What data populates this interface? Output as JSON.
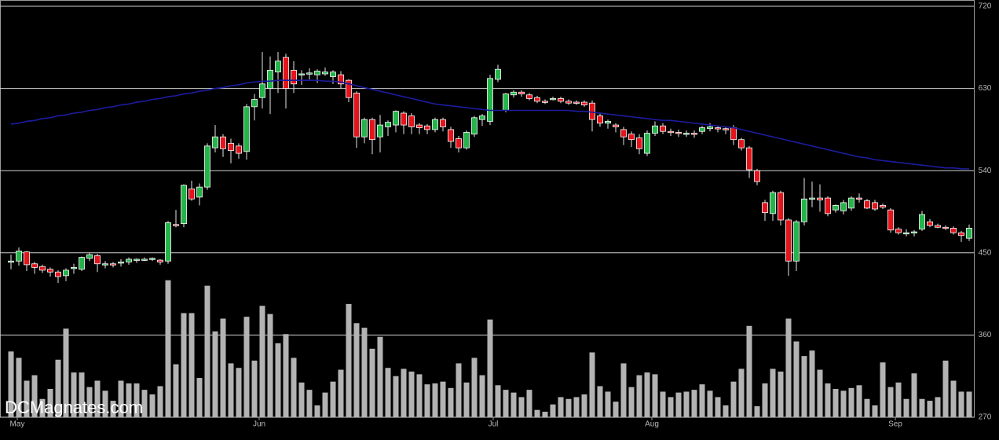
{
  "chart_data": {
    "type": "candlestick",
    "watermark": "DCMagnates.com",
    "ylim": [
      270,
      720
    ],
    "yticks": [
      270,
      360,
      450,
      540,
      630,
      720
    ],
    "grid": true,
    "xticks": [
      {
        "value": 0.8,
        "label": "May"
      },
      {
        "value": 31.6,
        "label": "Jun"
      },
      {
        "value": 61.4,
        "label": "Jul"
      },
      {
        "value": 81.6,
        "label": "Aug"
      },
      {
        "value": 112.6,
        "label": "Sep"
      }
    ],
    "candles": {
      "up_color": "#25b44a",
      "down_color": "#e3141b",
      "open": [
        440,
        441,
        451,
        438,
        435,
        432,
        429,
        425,
        433,
        432,
        444,
        447,
        438,
        438,
        439,
        440,
        442,
        443,
        443,
        442,
        441,
        481,
        482,
        520,
        511,
        522,
        565,
        577,
        570,
        567,
        561,
        610,
        620,
        630,
        648,
        664,
        650,
        645,
        646,
        645,
        646,
        643,
        645,
        639,
        625,
        577,
        596,
        577,
        588,
        590,
        603,
        600,
        590,
        589,
        585,
        596,
        585,
        575,
        565,
        580,
        596,
        594,
        640,
        606,
        623,
        626,
        623,
        620,
        616,
        619,
        619,
        616,
        615,
        615,
        614,
        600,
        592,
        590,
        585,
        580,
        576,
        559,
        581,
        589,
        583,
        582,
        581,
        581,
        583,
        586,
        587,
        586,
        587,
        574,
        565,
        540,
        505,
        493,
        516,
        486,
        441,
        484,
        509,
        510,
        510,
        497,
        496,
        499,
        510,
        507,
        505,
        502,
        497,
        476,
        472,
        472,
        476,
        484,
        480,
        478,
        477,
        472,
        466
      ],
      "high": [
        448,
        456,
        452,
        440,
        437,
        434,
        431,
        433,
        438,
        446,
        450,
        449,
        441,
        440,
        443,
        445,
        444,
        445,
        445,
        443,
        485,
        497,
        525,
        529,
        526,
        570,
        590,
        580,
        575,
        570,
        613,
        624,
        670,
        665,
        670,
        668,
        660,
        650,
        652,
        651,
        653,
        650,
        649,
        640,
        627,
        598,
        598,
        601,
        595,
        606,
        605,
        603,
        592,
        591,
        598,
        598,
        588,
        578,
        584,
        600,
        602,
        645,
        656,
        625,
        628,
        628,
        625,
        622,
        618,
        621,
        621,
        618,
        617,
        617,
        617,
        603,
        596,
        592,
        588,
        583,
        580,
        584,
        594,
        592,
        586,
        585,
        584,
        584,
        589,
        592,
        589,
        588,
        590,
        576,
        567,
        542,
        508,
        518,
        518,
        488,
        486,
        532,
        528,
        525,
        512,
        503,
        508,
        512,
        515,
        509,
        508,
        504,
        499,
        478,
        476,
        475,
        496,
        487,
        482,
        480,
        479,
        474,
        481
      ],
      "low": [
        432,
        436,
        430,
        427,
        428,
        424,
        417,
        419,
        427,
        430,
        441,
        429,
        433,
        434,
        435,
        437,
        439,
        441,
        441,
        437,
        438,
        478,
        478,
        507,
        502,
        519,
        560,
        555,
        548,
        553,
        552,
        595,
        608,
        602,
        625,
        608,
        625,
        634,
        640,
        636,
        644,
        635,
        630,
        615,
        565,
        570,
        558,
        560,
        578,
        582,
        580,
        580,
        580,
        580,
        582,
        583,
        565,
        560,
        563,
        577,
        589,
        590,
        637,
        604,
        620,
        621,
        617,
        614,
        613,
        617,
        614,
        612,
        612,
        610,
        583,
        588,
        586,
        582,
        568,
        566,
        558,
        556,
        578,
        580,
        578,
        577,
        577,
        576,
        580,
        583,
        582,
        580,
        568,
        562,
        532,
        524,
        485,
        485,
        480,
        425,
        430,
        480,
        500,
        495,
        490,
        494,
        492,
        496,
        505,
        498,
        496,
        498,
        472,
        470,
        468,
        468,
        474,
        478,
        477,
        475,
        470,
        462,
        463
      ],
      "close": [
        441,
        452,
        437,
        434,
        431,
        429,
        424,
        431,
        434,
        445,
        448,
        438,
        438,
        437,
        440,
        443,
        443,
        443,
        444,
        440,
        483,
        480,
        524,
        509,
        522,
        567,
        577,
        564,
        562,
        559,
        610,
        618,
        635,
        650,
        660,
        630,
        635,
        646,
        647,
        649,
        648,
        648,
        635,
        620,
        577,
        596,
        574,
        590,
        593,
        605,
        590,
        588,
        587,
        585,
        596,
        588,
        572,
        565,
        582,
        598,
        600,
        641,
        651,
        624,
        626,
        624,
        619,
        616,
        615,
        619,
        616,
        614,
        614,
        612,
        596,
        592,
        594,
        588,
        577,
        574,
        564,
        581,
        589,
        583,
        582,
        581,
        581,
        580,
        587,
        588,
        586,
        585,
        574,
        565,
        541,
        528,
        494,
        516,
        486,
        441,
        484,
        509,
        510,
        508,
        493,
        502,
        505,
        510,
        509,
        499,
        498,
        500,
        475,
        472,
        472,
        473,
        492,
        480,
        478,
        477,
        472,
        469,
        477
      ]
    },
    "volume": {
      "color": "#b3b3b3",
      "values": [
        342,
        335,
        310,
        316,
        290,
        301,
        333,
        367,
        319,
        319,
        303,
        310,
        299,
        288,
        310,
        307,
        307,
        300,
        295,
        304,
        420,
        328,
        384,
        384,
        313,
        414,
        364,
        378,
        329,
        324,
        380,
        332,
        392,
        383,
        351,
        361,
        335,
        308,
        300,
        283,
        297,
        309,
        322,
        394,
        373,
        368,
        345,
        358,
        324,
        315,
        323,
        320,
        317,
        306,
        307,
        309,
        302,
        329,
        308,
        335,
        316,
        377,
        305,
        300,
        297,
        292,
        300,
        278,
        276,
        284,
        292,
        290,
        292,
        295,
        341,
        304,
        298,
        287,
        329,
        303,
        316,
        319,
        317,
        298,
        292,
        297,
        298,
        300,
        306,
        299,
        292,
        283,
        309,
        323,
        370,
        282,
        307,
        323,
        320,
        378,
        353,
        337,
        343,
        322,
        307,
        301,
        299,
        302,
        305,
        290,
        283,
        330,
        303,
        308,
        290,
        318,
        290,
        288,
        292,
        332,
        310,
        298,
        298
      ]
    },
    "ma": {
      "color": "#1c1ca0",
      "values": [
        591,
        592,
        594,
        595,
        597,
        598,
        600,
        601,
        603,
        604,
        606,
        607,
        609,
        610,
        612,
        613,
        615,
        616,
        618,
        619,
        621,
        622,
        624,
        625,
        627,
        628,
        630,
        631,
        633,
        634,
        636,
        637,
        638,
        638,
        639,
        639,
        639,
        639,
        639,
        639,
        638,
        638,
        637,
        635,
        633,
        631,
        629,
        627,
        625,
        623,
        621,
        619,
        617,
        615,
        613,
        612,
        611,
        610,
        609,
        608,
        607,
        606,
        606,
        606,
        606,
        606,
        606,
        606,
        606,
        606,
        606,
        606,
        605,
        605,
        604,
        603,
        602,
        601,
        600,
        599,
        598,
        597,
        596,
        595,
        595,
        594,
        593,
        592,
        591,
        590,
        589,
        588,
        587,
        585,
        583,
        581,
        579,
        577,
        575,
        573,
        571,
        569,
        567,
        565,
        563,
        561,
        559,
        557,
        555,
        554,
        552,
        551,
        550,
        549,
        548,
        547,
        546,
        545,
        544,
        543,
        543,
        542,
        542
      ]
    }
  }
}
